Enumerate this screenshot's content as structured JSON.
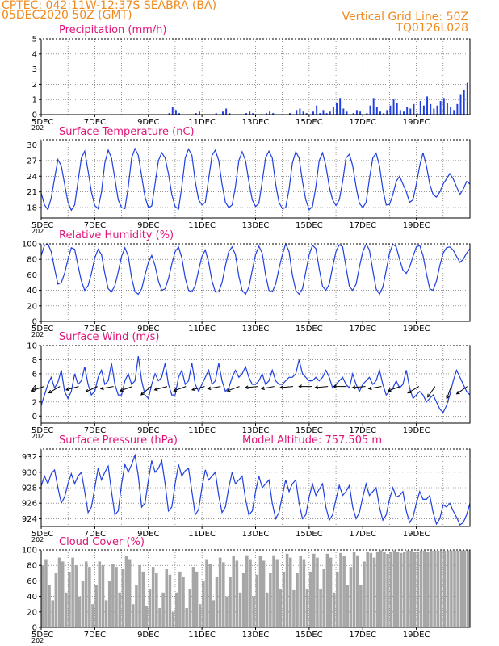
{
  "header": {
    "line1_left": "CPTEC:  042:11W-12:37S  SEABRA (BA)",
    "line2_left": "05DEC2020 50Z (GMT)",
    "line1_right": "Vertical Grid Line: 50Z",
    "line2_right": "TQ0126L028"
  },
  "colors": {
    "header": "#f08a1c",
    "panel_title": "#e0157a",
    "series_line": "#1f3fe0",
    "precip_bar": "#1f3fe0",
    "cloud_bar": "#a6a6a6",
    "wind_arrow": "#000000",
    "grid": "#555555"
  },
  "x_axis": {
    "start": "05DEC2020",
    "days": 16,
    "tick_labels": [
      "5DEC",
      "7DEC",
      "9DEC",
      "11DEC",
      "13DEC",
      "15DEC",
      "17DEC",
      "19DEC"
    ],
    "year_fragment": "202"
  },
  "chart_data": [
    {
      "id": "precipitation",
      "type": "bar",
      "title": "Precipitation (mm/h)",
      "ylim": [
        0,
        5
      ],
      "yticks": [
        0,
        1,
        2,
        3,
        4,
        5
      ],
      "grid": true,
      "series": [
        {
          "x_day_start": 0,
          "x_step_day": 0.125,
          "values": [
            0,
            0,
            0,
            0,
            0,
            0,
            0,
            0,
            0,
            0,
            0,
            0,
            0,
            0,
            0,
            0,
            0,
            0,
            0,
            0,
            0,
            0,
            0,
            0,
            0,
            0,
            0,
            0,
            0,
            0,
            0,
            0,
            0,
            0,
            0,
            0,
            0,
            0,
            0.1,
            0.5,
            0.3,
            0.1,
            0,
            0,
            0,
            0,
            0.1,
            0.2,
            0,
            0,
            0,
            0,
            0.1,
            0,
            0.2,
            0.4,
            0.1,
            0,
            0,
            0,
            0,
            0.1,
            0.2,
            0.1,
            0,
            0,
            0,
            0.1,
            0.2,
            0.1,
            0,
            0,
            0,
            0,
            0.1,
            0,
            0.3,
            0.4,
            0.2,
            0.1,
            0,
            0.2,
            0.6,
            0.1,
            0.3,
            0.1,
            0.2,
            0.5,
            0.8,
            1.1,
            0.4,
            0.2,
            0,
            0.1,
            0.3,
            0.2,
            0,
            0.1,
            0.6,
            1.1,
            0.5,
            0.2,
            0.1,
            0.3,
            0.6,
            1.0,
            0.8,
            0.3,
            0.2,
            0.5,
            0.4,
            0.7,
            0.1,
            0.9,
            0.6,
            1.2,
            0.7,
            0.4,
            0.6,
            0.9,
            1.1,
            0.8,
            0.5,
            0.3,
            0.7,
            1.3,
            1.6,
            2.1
          ]
        }
      ]
    },
    {
      "id": "surface_temperature",
      "type": "line",
      "title": "Surface Temperature (nC)",
      "ylim": [
        16,
        31
      ],
      "yticks": [
        18,
        21,
        24,
        27,
        30
      ],
      "grid": true,
      "series": [
        {
          "x_day_start": 0,
          "x_step_day": 0.125,
          "values": [
            20.8,
            18.5,
            17.6,
            19.8,
            23.6,
            27.2,
            26.0,
            22.5,
            19.0,
            17.5,
            18.5,
            23.0,
            27.5,
            28.8,
            25.0,
            21.0,
            18.4,
            17.8,
            21.0,
            26.5,
            29.0,
            27.5,
            23.5,
            19.5,
            18.0,
            17.8,
            22.0,
            27.5,
            29.3,
            28.0,
            24.0,
            20.0,
            18.0,
            18.3,
            22.5,
            27.0,
            28.5,
            27.5,
            24.5,
            20.5,
            18.2,
            17.7,
            22.0,
            27.5,
            29.2,
            28.0,
            23.0,
            19.5,
            18.5,
            19.0,
            23.5,
            28.0,
            29.0,
            27.0,
            22.5,
            19.0,
            18.0,
            18.5,
            22.0,
            27.0,
            28.7,
            27.0,
            23.0,
            19.5,
            18.2,
            18.8,
            23.0,
            27.5,
            28.8,
            27.5,
            22.5,
            19.0,
            17.8,
            18.0,
            21.5,
            26.5,
            28.7,
            27.5,
            23.0,
            19.5,
            17.6,
            18.2,
            22.0,
            27.0,
            28.5,
            26.0,
            22.0,
            19.5,
            18.4,
            19.5,
            23.0,
            27.5,
            28.2,
            26.0,
            22.0,
            18.8,
            18.0,
            19.0,
            23.5,
            27.5,
            28.4,
            26.0,
            21.5,
            18.5,
            18.6,
            20.5,
            23.0,
            24.0,
            22.5,
            21.0,
            19.0,
            19.5,
            22.5,
            26.0,
            28.5,
            26.0,
            22.5,
            20.5,
            20.0,
            21.0,
            22.5,
            23.5,
            24.5,
            23.5,
            22.0,
            20.5,
            21.5,
            23.0,
            22.5
          ]
        }
      ]
    },
    {
      "id": "relative_humidity",
      "type": "line",
      "title": "Relative Humidity (%)",
      "ylim": [
        0,
        100
      ],
      "yticks": [
        0,
        20,
        40,
        60,
        80,
        100
      ],
      "grid": true,
      "series": [
        {
          "x_day_start": 0,
          "x_step_day": 0.125,
          "values": [
            85,
            98,
            100,
            90,
            68,
            48,
            50,
            62,
            80,
            95,
            93,
            72,
            52,
            40,
            46,
            62,
            82,
            93,
            86,
            62,
            42,
            38,
            46,
            64,
            84,
            95,
            84,
            56,
            38,
            35,
            42,
            60,
            76,
            85,
            72,
            52,
            40,
            42,
            55,
            74,
            90,
            96,
            82,
            56,
            40,
            38,
            46,
            66,
            84,
            92,
            76,
            52,
            38,
            38,
            50,
            72,
            90,
            96,
            86,
            58,
            40,
            35,
            44,
            66,
            86,
            97,
            88,
            60,
            40,
            38,
            48,
            68,
            86,
            100,
            90,
            60,
            40,
            35,
            42,
            64,
            86,
            98,
            94,
            68,
            45,
            40,
            48,
            70,
            90,
            99,
            96,
            70,
            45,
            40,
            48,
            70,
            90,
            100,
            92,
            66,
            42,
            35,
            44,
            66,
            88,
            100,
            96,
            80,
            66,
            62,
            70,
            84,
            96,
            98,
            85,
            62,
            42,
            40,
            52,
            72,
            88,
            95,
            96,
            92,
            84,
            76,
            80,
            88,
            94
          ]
        }
      ]
    },
    {
      "id": "surface_wind",
      "type": "line",
      "title": "Surface Wind (m/s)",
      "ylim": [
        -1,
        10
      ],
      "yticks": [
        0,
        2,
        4,
        6,
        8,
        10
      ],
      "grid": true,
      "series": [
        {
          "x_day_start": 0,
          "x_step_day": 0.125,
          "values": [
            1.5,
            3.0,
            4.5,
            5.5,
            4.0,
            4.8,
            6.5,
            3.5,
            2.5,
            3.5,
            6.0,
            4.5,
            5.0,
            7.0,
            4.5,
            3.0,
            3.5,
            5.5,
            6.5,
            4.5,
            5.0,
            7.5,
            4.5,
            3.0,
            3.0,
            5.0,
            6.0,
            4.5,
            5.0,
            8.5,
            5.0,
            3.0,
            2.5,
            4.5,
            6.0,
            5.0,
            5.5,
            7.5,
            4.5,
            3.0,
            3.0,
            5.5,
            6.5,
            4.5,
            5.0,
            7.5,
            4.5,
            3.5,
            4.5,
            5.5,
            6.5,
            4.5,
            5.0,
            7.5,
            5.0,
            3.5,
            4.0,
            5.5,
            6.5,
            5.5,
            6.0,
            7.0,
            5.5,
            4.5,
            4.5,
            5.0,
            6.0,
            4.5,
            5.0,
            6.5,
            5.0,
            4.5,
            4.5,
            5.0,
            5.5,
            5.5,
            6.0,
            8.0,
            6.0,
            5.5,
            5.0,
            5.0,
            5.5,
            5.0,
            5.5,
            6.5,
            5.5,
            4.0,
            4.5,
            5.0,
            5.5,
            4.5,
            4.0,
            6.0,
            4.5,
            3.5,
            4.5,
            5.0,
            5.5,
            4.5,
            5.0,
            6.5,
            4.5,
            3.0,
            3.5,
            4.0,
            5.0,
            4.0,
            4.5,
            6.5,
            4.0,
            2.5,
            3.0,
            3.5,
            3.0,
            2.0,
            2.5,
            3.0,
            2.0,
            1.0,
            0.5,
            1.5,
            3.0,
            5.0,
            6.5,
            5.5,
            4.5,
            3.5,
            3.0
          ]
        }
      ],
      "arrows": [
        {
          "day": 0.1,
          "dir_deg": 250
        },
        {
          "day": 0.7,
          "dir_deg": 240
        },
        {
          "day": 1.4,
          "dir_deg": 255
        },
        {
          "day": 2.1,
          "dir_deg": 245
        },
        {
          "day": 2.7,
          "dir_deg": 260
        },
        {
          "day": 3.4,
          "dir_deg": 250
        },
        {
          "day": 4.1,
          "dir_deg": 230
        },
        {
          "day": 4.7,
          "dir_deg": 255
        },
        {
          "day": 5.4,
          "dir_deg": 250
        },
        {
          "day": 6.1,
          "dir_deg": 255
        },
        {
          "day": 6.7,
          "dir_deg": 260
        },
        {
          "day": 7.4,
          "dir_deg": 250
        },
        {
          "day": 8.1,
          "dir_deg": 265
        },
        {
          "day": 8.7,
          "dir_deg": 260
        },
        {
          "day": 9.4,
          "dir_deg": 265
        },
        {
          "day": 10.1,
          "dir_deg": 270
        },
        {
          "day": 10.7,
          "dir_deg": 265
        },
        {
          "day": 11.4,
          "dir_deg": 270
        },
        {
          "day": 12.1,
          "dir_deg": 265
        },
        {
          "day": 12.7,
          "dir_deg": 260
        },
        {
          "day": 13.4,
          "dir_deg": 250
        },
        {
          "day": 14.1,
          "dir_deg": 240
        },
        {
          "day": 14.7,
          "dir_deg": 215
        },
        {
          "day": 15.3,
          "dir_deg": 200
        },
        {
          "day": 15.9,
          "dir_deg": 235
        }
      ]
    },
    {
      "id": "surface_pressure",
      "type": "line",
      "title": "Surface Pressure (hPa)",
      "annotation": "Model Altitude: 757.505 m",
      "ylim": [
        923,
        933
      ],
      "yticks": [
        924,
        926,
        928,
        930,
        932
      ],
      "grid": true,
      "series": [
        {
          "x_day_start": 0,
          "x_step_day": 0.125,
          "values": [
            928.2,
            929.5,
            928.5,
            929.8,
            930.3,
            928.0,
            926.0,
            926.8,
            928.5,
            929.8,
            928.5,
            929.5,
            930.0,
            927.5,
            924.8,
            925.5,
            928.0,
            930.5,
            929.0,
            930.0,
            930.8,
            927.5,
            924.5,
            925.0,
            928.5,
            931.0,
            930.0,
            931.0,
            932.2,
            929.5,
            925.5,
            926.0,
            929.0,
            931.5,
            930.0,
            930.5,
            931.5,
            928.5,
            925.0,
            925.5,
            928.5,
            931.0,
            929.5,
            930.2,
            930.5,
            927.5,
            924.5,
            925.2,
            928.0,
            930.3,
            929.0,
            929.5,
            930.0,
            927.0,
            924.8,
            925.5,
            928.0,
            930.0,
            928.5,
            929.0,
            929.5,
            926.5,
            924.5,
            925.0,
            927.5,
            929.5,
            928.0,
            928.5,
            929.0,
            926.0,
            924.0,
            924.8,
            927.0,
            929.0,
            927.5,
            928.5,
            929.0,
            926.0,
            924.0,
            924.5,
            926.8,
            928.5,
            927.0,
            927.8,
            928.5,
            925.5,
            923.8,
            924.5,
            926.5,
            928.3,
            927.0,
            927.5,
            928.3,
            925.5,
            924.0,
            924.8,
            926.8,
            928.5,
            927.0,
            927.5,
            928.0,
            925.5,
            923.8,
            924.5,
            926.5,
            928.0,
            926.8,
            927.0,
            927.5,
            925.0,
            923.5,
            924.2,
            926.0,
            927.5,
            926.5,
            926.5,
            927.0,
            924.8,
            923.3,
            924.0,
            925.8,
            925.5,
            926.0,
            925.0,
            924.2,
            923.2,
            923.5,
            924.5,
            926.0
          ]
        }
      ]
    },
    {
      "id": "cloud_cover",
      "type": "bar",
      "title": "Cloud Cover (%)",
      "ylim": [
        0,
        100
      ],
      "yticks": [
        0,
        20,
        40,
        60,
        80,
        100
      ],
      "grid": true,
      "series": [
        {
          "x_day_start": 0,
          "x_step_day": 0.125,
          "values": [
            80,
            88,
            55,
            35,
            70,
            90,
            85,
            45,
            72,
            90,
            80,
            40,
            60,
            85,
            78,
            30,
            55,
            85,
            80,
            35,
            60,
            82,
            78,
            45,
            75,
            92,
            88,
            30,
            55,
            80,
            72,
            28,
            50,
            78,
            70,
            25,
            45,
            75,
            68,
            20,
            45,
            72,
            65,
            25,
            50,
            78,
            72,
            30,
            60,
            88,
            82,
            35,
            65,
            90,
            84,
            40,
            65,
            92,
            86,
            45,
            70,
            93,
            88,
            40,
            68,
            92,
            86,
            45,
            70,
            93,
            88,
            50,
            72,
            95,
            90,
            48,
            70,
            92,
            88,
            50,
            72,
            95,
            90,
            50,
            75,
            95,
            90,
            45,
            72,
            96,
            92,
            55,
            78,
            97,
            93,
            55,
            85,
            98,
            96,
            90,
            98,
            100,
            98,
            95,
            97,
            100,
            98,
            96,
            98,
            100,
            99,
            97,
            98,
            100,
            99,
            98,
            99,
            100,
            99,
            99,
            99,
            100,
            100,
            99,
            99,
            100,
            100,
            100
          ]
        }
      ]
    }
  ]
}
